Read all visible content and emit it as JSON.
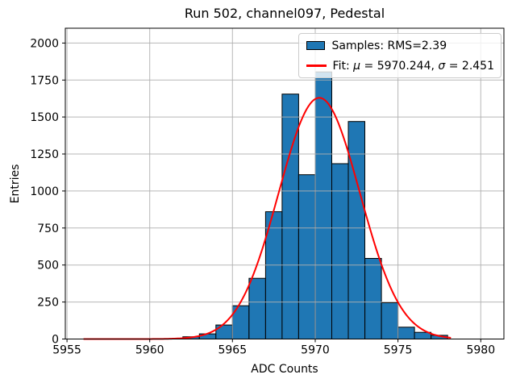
{
  "figure": {
    "title": "Run 502, channel097, Pedestal",
    "xlabel": "ADC Counts",
    "ylabel": "Entries"
  },
  "legend": {
    "samples_label": "Samples: RMS=2.39",
    "fit_segments": [
      "Fit: ",
      "μ",
      " = 5970.244, ",
      "σ",
      " = 2.451"
    ],
    "patch_fill": "#1f77b4",
    "patch_edge": "#000000",
    "line_color": "#ff0000"
  },
  "chart_data": {
    "type": "bar",
    "subtype": "histogram",
    "title": "Run 502, channel097, Pedestal",
    "xlabel": "ADC Counts",
    "ylabel": "Entries",
    "bin_start": 5962,
    "bin_width": 1,
    "counts": [
      15,
      35,
      95,
      225,
      410,
      860,
      1655,
      1110,
      1805,
      1185,
      1470,
      545,
      245,
      80,
      45,
      25
    ],
    "rms": 2.39,
    "xlim": [
      5954.9,
      5981.4
    ],
    "ylim": [
      0,
      2100
    ],
    "xticks": [
      5955,
      5960,
      5965,
      5970,
      5975,
      5980
    ],
    "yticks": [
      0,
      250,
      500,
      750,
      1000,
      1250,
      1500,
      1750,
      2000
    ],
    "grid": true,
    "grid_color": "#b0b0b0",
    "bar_color": "#1f77b4",
    "bar_edge_color": "#000000",
    "fit": {
      "mu": 5970.244,
      "sigma": 2.451,
      "peak": 1630,
      "x_start": 5956.0,
      "x_end": 5978.2,
      "color": "#ff0000"
    },
    "legend_position": "upper right"
  }
}
